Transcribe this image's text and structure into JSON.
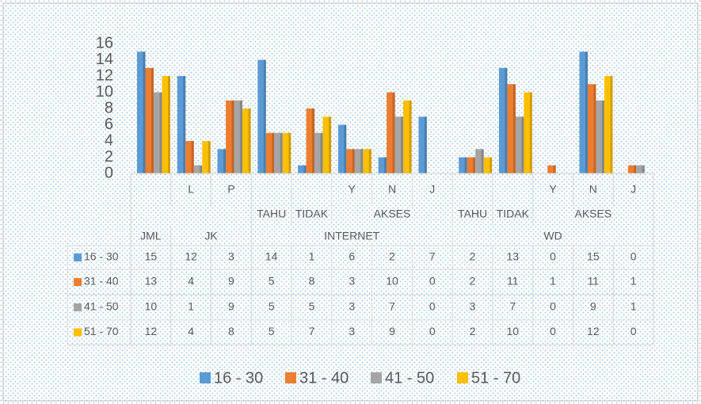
{
  "chart_data": {
    "type": "bar",
    "categories": [
      null,
      "L",
      "P",
      null,
      null,
      "Y",
      "N",
      "J",
      null,
      null,
      "Y",
      "N",
      "J"
    ],
    "category_groups": [
      [
        {
          "label": null,
          "span": 3
        },
        {
          "label": "TAHU",
          "span": 1
        },
        {
          "label": "TIDAK",
          "span": 1
        },
        {
          "label": "AKSES",
          "span": 3
        },
        {
          "label": "TAHU",
          "span": 1
        },
        {
          "label": "TIDAK",
          "span": 1
        },
        {
          "label": "AKSES",
          "span": 3
        }
      ],
      [
        {
          "label": "JML",
          "span": 1
        },
        {
          "label": "JK",
          "span": 2
        },
        {
          "label": "INTERNET",
          "span": 5
        },
        {
          "label": "WD",
          "span": 5
        }
      ]
    ],
    "series": [
      {
        "name": "16 - 30",
        "color": "#5b9bd5",
        "values": [
          15,
          12,
          3,
          14,
          1,
          6,
          2,
          7,
          2,
          13,
          0,
          15,
          0
        ]
      },
      {
        "name": "31 - 40",
        "color": "#ed7d31",
        "values": [
          13,
          4,
          9,
          5,
          8,
          3,
          10,
          0,
          2,
          11,
          1,
          11,
          1
        ]
      },
      {
        "name": "41 - 50",
        "color": "#a5a5a5",
        "values": [
          10,
          1,
          9,
          5,
          5,
          3,
          7,
          0,
          3,
          7,
          0,
          9,
          1
        ]
      },
      {
        "name": "51 - 70",
        "color": "#ffc000",
        "values": [
          12,
          4,
          8,
          5,
          7,
          3,
          9,
          0,
          2,
          10,
          0,
          12,
          0
        ]
      }
    ],
    "ylim": [
      0,
      16
    ],
    "yticks": [
      0,
      2,
      4,
      6,
      8,
      10,
      12,
      14,
      16
    ],
    "grid": false,
    "data_table": true,
    "legend": "bottom"
  }
}
